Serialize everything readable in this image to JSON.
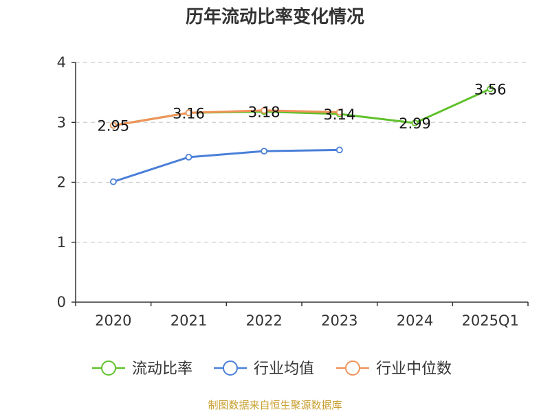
{
  "chart_data": {
    "type": "line",
    "title": "历年流动比率变化情况",
    "categories": [
      "2020",
      "2021",
      "2022",
      "2023",
      "2024",
      "2025Q1"
    ],
    "ylim": [
      0,
      4
    ],
    "yticks": [
      0,
      1,
      2,
      3,
      4
    ],
    "grid": true,
    "legend_position": "bottom",
    "series": [
      {
        "name": "流动比率",
        "color": "#5fc12b",
        "values": [
          2.95,
          3.16,
          3.18,
          3.14,
          2.99,
          3.56
        ],
        "labels": [
          "2.95",
          "3.16",
          "3.18",
          "3.14",
          "2.99",
          "3.56"
        ]
      },
      {
        "name": "行业均值",
        "color": "#4a7fd8",
        "values": [
          2.01,
          2.42,
          2.52,
          2.54,
          null,
          null
        ]
      },
      {
        "name": "行业中位数",
        "color": "#f0935a",
        "values": [
          2.95,
          3.16,
          3.2,
          3.17,
          null,
          null
        ]
      }
    ],
    "source": "制图数据来自恒生聚源数据库"
  }
}
